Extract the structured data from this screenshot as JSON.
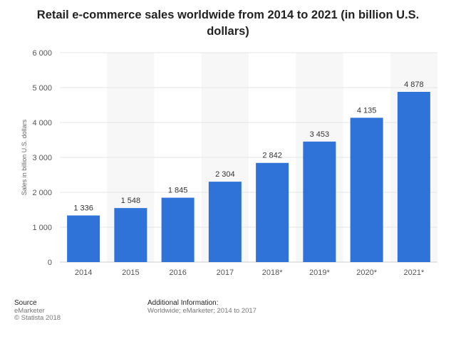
{
  "chart_data": {
    "type": "bar",
    "title": "Retail e-commerce sales worldwide from 2014 to 2021 (in billion U.S. dollars)",
    "ylabel": "Sales in billion U.S. dollars",
    "xlabel": "",
    "categories": [
      "2014",
      "2015",
      "2016",
      "2017",
      "2018*",
      "2019*",
      "2020*",
      "2021*"
    ],
    "values": [
      1336,
      1548,
      1845,
      2304,
      2842,
      3453,
      4135,
      4878
    ],
    "value_labels": [
      "1 336",
      "1 548",
      "1 845",
      "2 304",
      "2 842",
      "3 453",
      "4 135",
      "4 878"
    ],
    "ylim": [
      0,
      6000
    ],
    "yticks": [
      0,
      1000,
      2000,
      3000,
      4000,
      5000,
      6000
    ],
    "ytick_labels": [
      "0",
      "1 000",
      "2 000",
      "3 000",
      "4 000",
      "5 000",
      "6 000"
    ],
    "grid": true,
    "bar_color": "#2f73d9"
  },
  "footer": {
    "source_heading": "Source",
    "source_lines": [
      "eMarketer",
      "© Statista 2018"
    ],
    "info_heading": "Additional Information:",
    "info_text": "Worldwide; eMarketer; 2014 to 2017"
  }
}
